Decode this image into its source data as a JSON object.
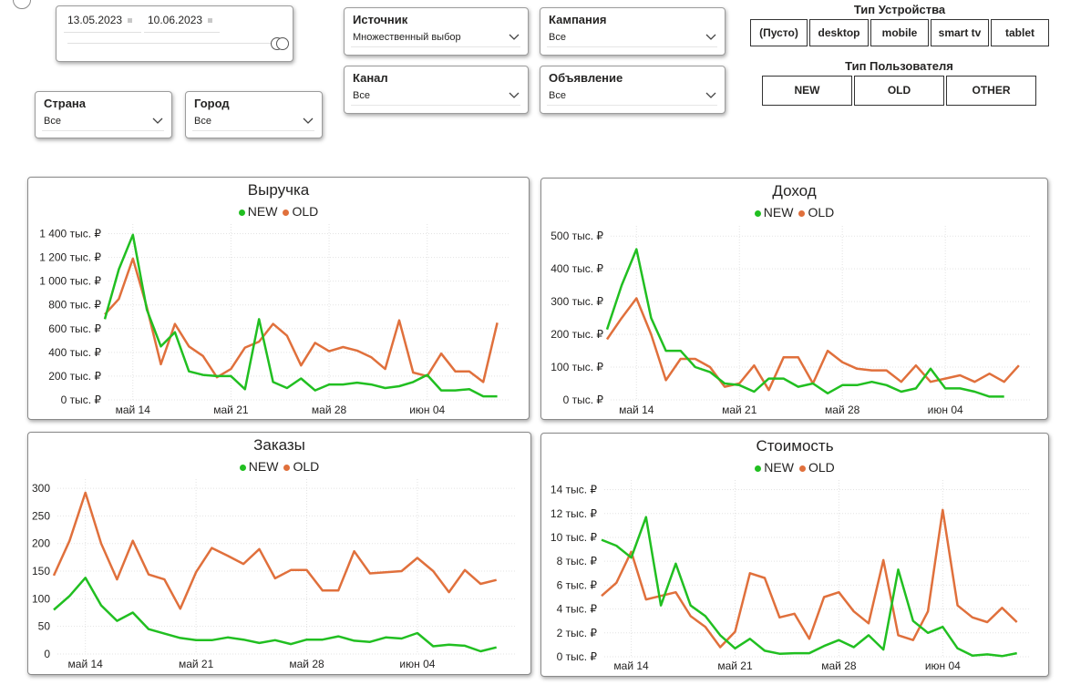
{
  "date_slicer": {
    "start": "13.05.2023",
    "end": "10.06.2023"
  },
  "slicers": {
    "country": {
      "title": "Страна",
      "value": "Все"
    },
    "city": {
      "title": "Город",
      "value": "Все"
    },
    "source": {
      "title": "Источник",
      "value": "Множественный выбор"
    },
    "channel": {
      "title": "Канал",
      "value": "Все"
    },
    "campaign": {
      "title": "Кампания",
      "value": "Все"
    },
    "ad": {
      "title": "Объявление",
      "value": "Все"
    }
  },
  "device_type": {
    "title": "Тип Устройства",
    "options": [
      "(Пусто)",
      "desktop",
      "mobile",
      "smart tv",
      "tablet"
    ]
  },
  "user_type": {
    "title": "Тип Пользователя",
    "options": [
      "NEW",
      "OLD",
      "OTHER"
    ]
  },
  "colors": {
    "new": "#21bf21",
    "old": "#e0703c"
  },
  "legend": {
    "new": "NEW",
    "old": "OLD"
  },
  "chart_data": [
    {
      "type": "line",
      "title": "Выручка",
      "x": [
        "2023-05-12",
        "2023-05-13",
        "2023-05-14",
        "2023-05-15",
        "2023-05-16",
        "2023-05-17",
        "2023-05-18",
        "2023-05-19",
        "2023-05-20",
        "2023-05-21",
        "2023-05-22",
        "2023-05-23",
        "2023-05-24",
        "2023-05-25",
        "2023-05-26",
        "2023-05-27",
        "2023-05-28",
        "2023-05-29",
        "2023-05-30",
        "2023-05-31",
        "2023-06-01",
        "2023-06-02",
        "2023-06-03",
        "2023-06-04",
        "2023-06-05",
        "2023-06-06",
        "2023-06-07",
        "2023-06-08",
        "2023-06-09",
        "2023-06-10"
      ],
      "series": [
        {
          "name": "NEW",
          "values": [
            680,
            1100,
            1390,
            760,
            450,
            570,
            240,
            210,
            200,
            200,
            90,
            680,
            150,
            100,
            180,
            80,
            130,
            130,
            145,
            130,
            100,
            115,
            150,
            210,
            80,
            80,
            90,
            30,
            30,
            null
          ]
        },
        {
          "name": "OLD",
          "values": [
            720,
            850,
            1190,
            780,
            300,
            640,
            450,
            370,
            190,
            260,
            440,
            490,
            640,
            540,
            290,
            480,
            410,
            445,
            415,
            360,
            260,
            670,
            230,
            200,
            390,
            240,
            240,
            150,
            650,
            null
          ]
        }
      ],
      "yticks": [
        0,
        200,
        400,
        600,
        800,
        1000,
        1200,
        1400
      ],
      "ytick_labels": [
        "0 тыс. ₽",
        "200 тыс. ₽",
        "400 тыс. ₽",
        "600 тыс. ₽",
        "800 тыс. ₽",
        "1 000 тыс. ₽",
        "1 200 тыс. ₽",
        "1 400 тыс. ₽"
      ],
      "ylim": [
        0,
        1450
      ],
      "xtick_labels": [
        "май 14",
        "май 21",
        "май 28",
        "июн 04"
      ],
      "xtick_dates": [
        "2023-05-14",
        "2023-05-21",
        "2023-05-28",
        "2023-06-04"
      ]
    },
    {
      "type": "line",
      "title": "Доход",
      "x": [
        "2023-05-12",
        "2023-05-13",
        "2023-05-14",
        "2023-05-15",
        "2023-05-16",
        "2023-05-17",
        "2023-05-18",
        "2023-05-19",
        "2023-05-20",
        "2023-05-21",
        "2023-05-22",
        "2023-05-23",
        "2023-05-24",
        "2023-05-25",
        "2023-05-26",
        "2023-05-27",
        "2023-05-28",
        "2023-05-29",
        "2023-05-30",
        "2023-05-31",
        "2023-06-01",
        "2023-06-02",
        "2023-06-03",
        "2023-06-04",
        "2023-06-05",
        "2023-06-06",
        "2023-06-07",
        "2023-06-08",
        "2023-06-09",
        "2023-06-10"
      ],
      "series": [
        {
          "name": "NEW",
          "values": [
            215,
            350,
            460,
            250,
            150,
            150,
            100,
            85,
            50,
            45,
            25,
            65,
            65,
            40,
            50,
            20,
            45,
            45,
            55,
            45,
            25,
            35,
            95,
            35,
            35,
            25,
            10,
            10,
            null,
            null
          ]
        },
        {
          "name": "OLD",
          "values": [
            185,
            250,
            310,
            200,
            60,
            125,
            125,
            100,
            40,
            50,
            105,
            30,
            130,
            130,
            50,
            150,
            115,
            95,
            90,
            90,
            55,
            105,
            55,
            65,
            75,
            55,
            80,
            55,
            105,
            null
          ]
        }
      ],
      "yticks": [
        0,
        100,
        200,
        300,
        400,
        500
      ],
      "ytick_labels": [
        "0 тыс. ₽",
        "100 тыс. ₽",
        "200 тыс. ₽",
        "300 тыс. ₽",
        "400 тыс. ₽",
        "500 тыс. ₽"
      ],
      "ylim": [
        0,
        520
      ],
      "xtick_labels": [
        "май 14",
        "май 21",
        "май 28",
        "июн 04"
      ],
      "xtick_dates": [
        "2023-05-14",
        "2023-05-21",
        "2023-05-28",
        "2023-06-04"
      ]
    },
    {
      "type": "line",
      "title": "Заказы",
      "x": [
        "2023-05-12",
        "2023-05-13",
        "2023-05-14",
        "2023-05-15",
        "2023-05-16",
        "2023-05-17",
        "2023-05-18",
        "2023-05-19",
        "2023-05-20",
        "2023-05-21",
        "2023-05-22",
        "2023-05-23",
        "2023-05-24",
        "2023-05-25",
        "2023-05-26",
        "2023-05-27",
        "2023-05-28",
        "2023-05-29",
        "2023-05-30",
        "2023-05-31",
        "2023-06-01",
        "2023-06-02",
        "2023-06-03",
        "2023-06-04",
        "2023-06-05",
        "2023-06-06",
        "2023-06-07",
        "2023-06-08",
        "2023-06-09",
        "2023-06-10"
      ],
      "series": [
        {
          "name": "NEW",
          "values": [
            80,
            105,
            138,
            88,
            60,
            75,
            45,
            37,
            29,
            25,
            25,
            30,
            26,
            20,
            25,
            18,
            26,
            26,
            32,
            24,
            22,
            30,
            28,
            38,
            14,
            17,
            15,
            5,
            12,
            null
          ]
        },
        {
          "name": "OLD",
          "values": [
            142,
            205,
            292,
            200,
            135,
            205,
            144,
            135,
            82,
            148,
            192,
            178,
            163,
            190,
            137,
            152,
            152,
            115,
            115,
            186,
            146,
            148,
            150,
            174,
            150,
            112,
            152,
            127,
            134,
            null
          ]
        }
      ],
      "yticks": [
        0,
        50,
        100,
        150,
        200,
        250,
        300
      ],
      "ytick_labels": [
        "0",
        "50",
        "100",
        "150",
        "200",
        "250",
        "300"
      ],
      "ylim": [
        0,
        310
      ],
      "xtick_labels": [
        "май 14",
        "май 21",
        "май 28",
        "июн 04"
      ],
      "xtick_dates": [
        "2023-05-14",
        "2023-05-21",
        "2023-05-28",
        "2023-06-04"
      ]
    },
    {
      "type": "line",
      "title": "Стоимость",
      "x": [
        "2023-05-12",
        "2023-05-13",
        "2023-05-14",
        "2023-05-15",
        "2023-05-16",
        "2023-05-17",
        "2023-05-18",
        "2023-05-19",
        "2023-05-20",
        "2023-05-21",
        "2023-05-22",
        "2023-05-23",
        "2023-05-24",
        "2023-05-25",
        "2023-05-26",
        "2023-05-27",
        "2023-05-28",
        "2023-05-29",
        "2023-05-30",
        "2023-05-31",
        "2023-06-01",
        "2023-06-02",
        "2023-06-03",
        "2023-06-04",
        "2023-06-05",
        "2023-06-06",
        "2023-06-07",
        "2023-06-08",
        "2023-06-09",
        "2023-06-10"
      ],
      "series": [
        {
          "name": "NEW",
          "values": [
            9.8,
            9.3,
            8.3,
            11.7,
            4.3,
            7.8,
            4.3,
            3.4,
            1.8,
            0.7,
            1.5,
            0.5,
            0.25,
            0.3,
            0.3,
            0.9,
            1.4,
            0.8,
            1.8,
            0.6,
            7.3,
            3.0,
            2.0,
            2.5,
            0.7,
            0.1,
            0.2,
            0.05,
            0.3,
            null
          ]
        },
        {
          "name": "OLD",
          "values": [
            5.1,
            6.2,
            8.8,
            4.8,
            5.1,
            5.4,
            3.4,
            2.5,
            0.8,
            2.1,
            7.0,
            6.6,
            3.3,
            3.6,
            1.5,
            5.0,
            5.4,
            3.8,
            2.8,
            8.1,
            1.8,
            1.4,
            3.8,
            12.3,
            4.3,
            3.3,
            2.9,
            4.1,
            2.9,
            null
          ]
        }
      ],
      "yticks": [
        0,
        2,
        4,
        6,
        8,
        10,
        12,
        14
      ],
      "ytick_labels": [
        "0 тыс. ₽",
        "2 тыс. ₽",
        "4 тыс. ₽",
        "6 тыс. ₽",
        "8 тыс. ₽",
        "10 тыс. ₽",
        "12 тыс. ₽",
        "14 тыс. ₽"
      ],
      "ylim": [
        0,
        14.5
      ],
      "xtick_labels": [
        "май 14",
        "май 21",
        "май 28",
        "июн 04"
      ],
      "xtick_dates": [
        "2023-05-14",
        "2023-05-21",
        "2023-05-28",
        "2023-06-04"
      ]
    }
  ]
}
